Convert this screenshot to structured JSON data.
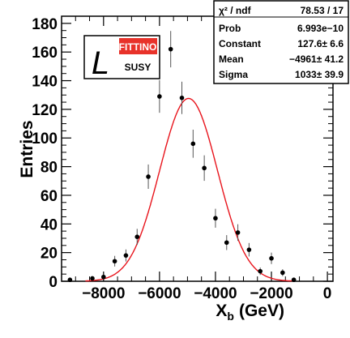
{
  "chart_data": {
    "type": "scatter",
    "title": "",
    "xlabel": "X",
    "xlabel_sub": "b",
    "xlabel_unit": "(GeV)",
    "ylabel": "Entries",
    "xlim": [
      -9500,
      200
    ],
    "ylim": [
      0,
      185
    ],
    "x_ticks": [
      -8000,
      -6000,
      -4000,
      -2000,
      0
    ],
    "x_tick_labels": [
      "−8000",
      "−6000",
      "−4000",
      "−2000",
      "0"
    ],
    "y_ticks": [
      0,
      20,
      40,
      60,
      80,
      100,
      120,
      140,
      160,
      180
    ],
    "y_tick_labels": [
      "0",
      "20",
      "40",
      "60",
      "80",
      "100",
      "120",
      "140",
      "160",
      "180"
    ],
    "grid": false,
    "series": [
      {
        "type": "points_with_errors",
        "x": [
          -9200,
          -8400,
          -8000,
          -7600,
          -7200,
          -6800,
          -6400,
          -6000,
          -5600,
          -5200,
          -4800,
          -4400,
          -4000,
          -3600,
          -3200,
          -2800,
          -2400,
          -2000,
          -1600,
          -1200
        ],
        "y": [
          1,
          2,
          3,
          14,
          18,
          31,
          73,
          129,
          162,
          128,
          96,
          79,
          44,
          27,
          34,
          22,
          7,
          16,
          6,
          1
        ],
        "yerr": [
          1,
          1.4,
          1.7,
          3.7,
          4.2,
          5.6,
          8.5,
          11.4,
          12.7,
          11.3,
          9.8,
          8.9,
          6.6,
          5.2,
          5.8,
          4.7,
          2.6,
          4.0,
          2.4,
          1
        ],
        "xerr": 200,
        "color": "#000000"
      },
      {
        "type": "gaussian_fit",
        "constant": 127.6,
        "mean": -4961,
        "sigma": 1033,
        "color": "#e8141c"
      }
    ],
    "stats_box": {
      "rows": [
        {
          "label": "χ² / ndf",
          "value": "78.53 / 17"
        },
        {
          "label": "Prob",
          "value": "6.993e−10"
        },
        {
          "label": "Constant",
          "value": "127.6± 6.6"
        },
        {
          "label": "Mean",
          "value": "−4961± 41.2"
        },
        {
          "label": "Sigma",
          "value": "1033± 39.9"
        }
      ]
    }
  },
  "logo": {
    "letter": "L",
    "line1": "FITTINO",
    "line2": "SUSY",
    "accent": "#e8322a"
  }
}
